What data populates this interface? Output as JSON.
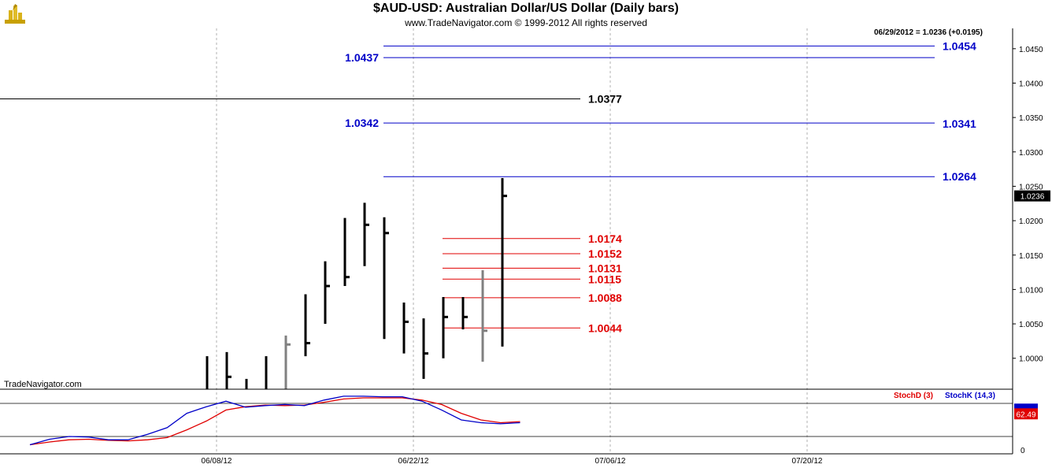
{
  "header": {
    "title": "$AUD-USD:  Australian Dollar/US Dollar  (Daily bars)",
    "copyright": "www.TradeNavigator.com © 1999-2012 All rights reserved",
    "status": "06/29/2012 = 1.0236 (+0.0195)",
    "watermark": "TradeNavigator.com",
    "last_price_tag": "1.0236"
  },
  "colors": {
    "bar": "#000000",
    "bar_down": "#808080",
    "level_blue": "#0000c8",
    "level_red": "#e00000",
    "stoch_d": "#e00000",
    "stoch_k": "#0000c8",
    "grid": "#b0b0b0",
    "accent_gold": "#c8a000"
  },
  "chart_data": [
    {
      "type": "ohlc",
      "x_axis": {
        "ticks": [
          "06/08/12",
          "06/22/12",
          "07/06/12",
          "07/20/12"
        ]
      },
      "y_axis": {
        "ticks": [
          "1.0000",
          "1.0050",
          "1.0100",
          "1.0150",
          "1.0200",
          "1.0250",
          "1.0300",
          "1.0350",
          "1.0400",
          "1.0450"
        ],
        "range": [
          0.9955,
          1.0475
        ]
      },
      "bars": [
        {
          "h": 1.0003,
          "l": 0.9955,
          "c": null,
          "shade": "black"
        },
        {
          "h": 1.0009,
          "l": 0.9955,
          "c": 0.9973,
          "shade": "black"
        },
        {
          "h": 0.997,
          "l": 0.9955,
          "c": null,
          "shade": "black"
        },
        {
          "h": 1.0003,
          "l": 0.9955,
          "c": null,
          "shade": "black"
        },
        {
          "h": 1.0033,
          "l": 0.9955,
          "c": 1.002,
          "shade": "gray"
        },
        {
          "h": 1.0093,
          "l": 1.0003,
          "c": 1.0022,
          "shade": "black"
        },
        {
          "h": 1.0141,
          "l": 1.005,
          "c": 1.0105,
          "shade": "black"
        },
        {
          "h": 1.0204,
          "l": 1.0105,
          "c": 1.0118,
          "shade": "black"
        },
        {
          "h": 1.0226,
          "l": 1.0134,
          "c": 1.0194,
          "shade": "black"
        },
        {
          "h": 1.0205,
          "l": 1.0028,
          "c": 1.0182,
          "shade": "black"
        },
        {
          "h": 1.0081,
          "l": 1.0007,
          "c": 1.0053,
          "shade": "black"
        },
        {
          "h": 1.0058,
          "l": 0.997,
          "c": 1.0007,
          "shade": "black"
        },
        {
          "h": 1.0089,
          "l": 1.0,
          "c": 1.006,
          "shade": "black"
        },
        {
          "h": 1.0089,
          "l": 1.0042,
          "c": 1.006,
          "shade": "black"
        },
        {
          "h": 1.0128,
          "l": 0.9995,
          "c": 1.004,
          "shade": "gray"
        },
        {
          "h": 1.0262,
          "l": 1.0017,
          "c": 1.0236,
          "shade": "black"
        }
      ],
      "levels": [
        {
          "label": "1.0454",
          "value": 1.0454,
          "color": "blue",
          "side": "right",
          "extent": "long"
        },
        {
          "label": "1.0437",
          "value": 1.0437,
          "color": "blue",
          "side": "left",
          "extent": "long"
        },
        {
          "label": "1.0377",
          "value": 1.0377,
          "color": "black",
          "side": "right",
          "extent": "full-left"
        },
        {
          "label": "1.0342",
          "value": 1.0342,
          "color": "blue",
          "side": "left",
          "extent": "long"
        },
        {
          "label": "1.0341",
          "value": 1.0341,
          "color": "blue",
          "side": "right",
          "extent": "none"
        },
        {
          "label": "1.0264",
          "value": 1.0264,
          "color": "blue",
          "side": "right",
          "extent": "long"
        },
        {
          "label": "1.0174",
          "value": 1.0174,
          "color": "red",
          "side": "right",
          "extent": "short"
        },
        {
          "label": "1.0152",
          "value": 1.0152,
          "color": "red",
          "side": "right",
          "extent": "short"
        },
        {
          "label": "1.0131",
          "value": 1.0131,
          "color": "red",
          "side": "right",
          "extent": "short"
        },
        {
          "label": "1.0115",
          "value": 1.0115,
          "color": "red",
          "side": "right",
          "extent": "short"
        },
        {
          "label": "1.0088",
          "value": 1.0088,
          "color": "red",
          "side": "right",
          "extent": "short"
        },
        {
          "label": "1.0044",
          "value": 1.0044,
          "color": "red",
          "side": "right",
          "extent": "short"
        }
      ]
    },
    {
      "type": "line",
      "legend": [
        "StochD (3)",
        "StochK (14,3)"
      ],
      "y_axis": {
        "ticks": [
          "0"
        ],
        "range": [
          0,
          100
        ],
        "guides": [
          20,
          80
        ]
      },
      "tags": [
        "62.49"
      ],
      "series": [
        {
          "name": "StochD (3)",
          "values": [
            5,
            10,
            14,
            15,
            13,
            12,
            14,
            18,
            32,
            48,
            68,
            74,
            77,
            76,
            77,
            82,
            88,
            90,
            90,
            90,
            86,
            78,
            62,
            50,
            45,
            47
          ]
        },
        {
          "name": "StochK (14,3)",
          "values": [
            5,
            15,
            20,
            19,
            14,
            14,
            24,
            36,
            62,
            74,
            84,
            73,
            76,
            78,
            76,
            86,
            93,
            93,
            92,
            92,
            84,
            68,
            50,
            45,
            43,
            45
          ]
        }
      ]
    }
  ]
}
